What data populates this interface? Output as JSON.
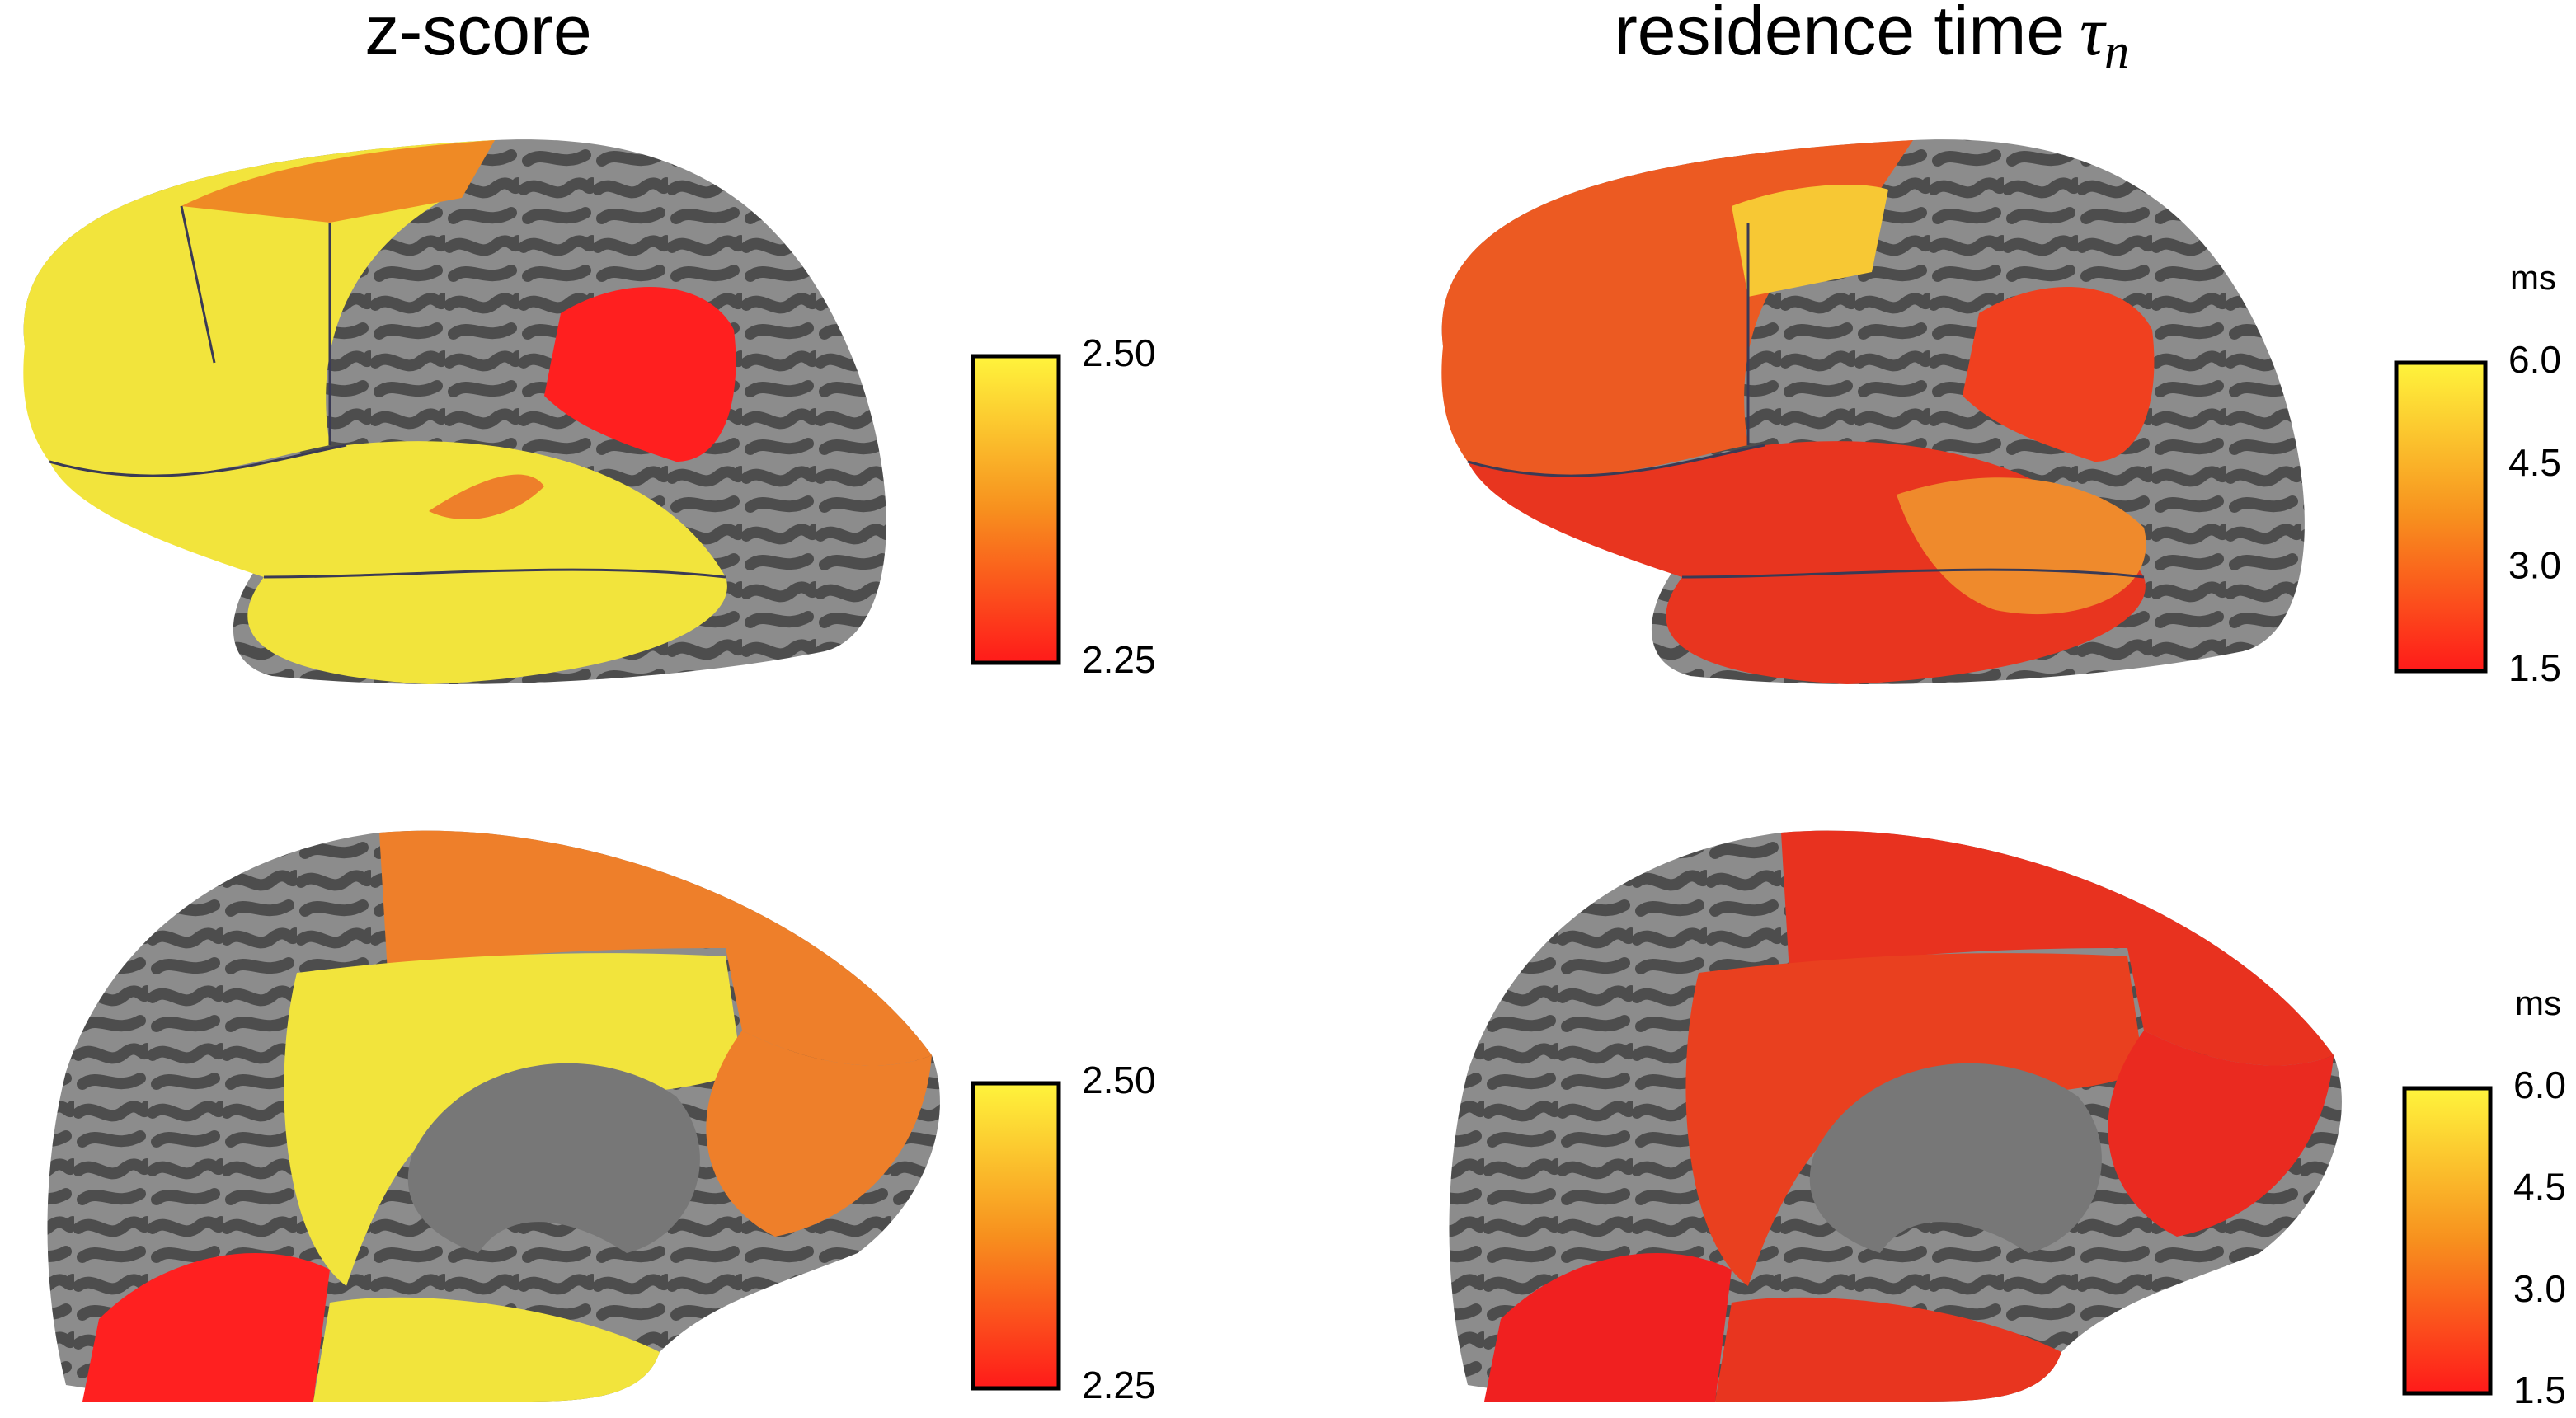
{
  "columns": [
    {
      "title": "z-score",
      "colorbars": [
        {
          "range": [
            2.25,
            2.5
          ],
          "ticks": [
            {
              "value": 2.5,
              "label": "2.50"
            },
            {
              "value": 2.25,
              "label": "2.25"
            }
          ]
        },
        {
          "range": [
            2.25,
            2.5
          ],
          "ticks": [
            {
              "value": 2.5,
              "label": "2.50"
            },
            {
              "value": 2.25,
              "label": "2.25"
            }
          ]
        }
      ]
    },
    {
      "title": "residence time",
      "symbol": "τ",
      "subscript": "n",
      "colorbars": [
        {
          "unit": "ms",
          "range": [
            1.5,
            6
          ],
          "ticks": [
            {
              "value": 6,
              "label": "6.0"
            },
            {
              "value": 4.5,
              "label": "4.5"
            },
            {
              "value": 3,
              "label": "3.0"
            },
            {
              "value": 1.5,
              "label": "1.5"
            }
          ]
        },
        {
          "unit": "ms",
          "range": [
            1.5,
            6
          ],
          "ticks": [
            {
              "value": 6,
              "label": "6.0"
            },
            {
              "value": 4.5,
              "label": "4.5"
            },
            {
              "value": 3,
              "label": "3.0"
            },
            {
              "value": 1.5,
              "label": "1.5"
            }
          ]
        }
      ]
    }
  ]
}
